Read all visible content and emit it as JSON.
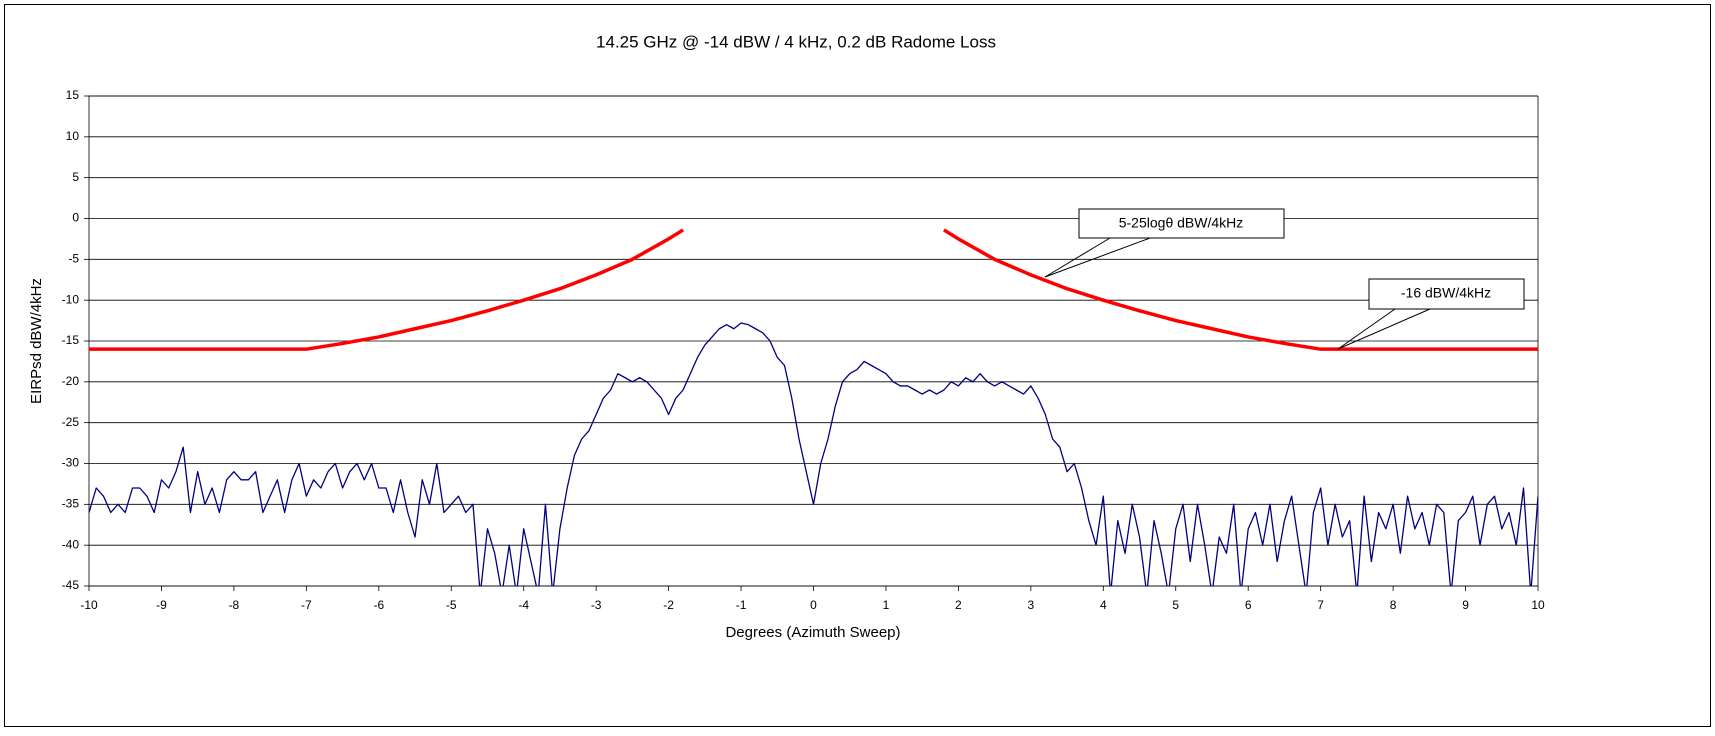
{
  "chart_data": {
    "type": "line",
    "title": "14.25 GHz @ -14 dBW / 4 kHz, 0.2 dB Radome Loss",
    "x_label": "Degrees (Azimuth Sweep)",
    "y_label": "EIRPsd dBW/4kHz",
    "xlim": [
      -10,
      10
    ],
    "xticks": [
      -10,
      -9,
      -8,
      -7,
      -6,
      -5,
      -4,
      -3,
      -2,
      -1,
      0,
      1,
      2,
      3,
      4,
      5,
      6,
      7,
      8,
      9,
      10
    ],
    "ylim": [
      -45,
      15
    ],
    "yticks": [
      -45,
      -40,
      -35,
      -30,
      -25,
      -20,
      -15,
      -10,
      -5,
      0,
      5,
      10,
      15
    ],
    "grid": true,
    "annotations": [
      {
        "text": "5-25logθ dBW/4kHz"
      },
      {
        "text": "-16 dBW/4kHz"
      }
    ],
    "series": [
      {
        "color": "#000080",
        "width": 1.3,
        "x": [
          -10,
          -9.9,
          -9.8,
          -9.7,
          -9.6,
          -9.5,
          -9.4,
          -9.3,
          -9.2,
          -9.1,
          -9,
          -8.9,
          -8.8,
          -8.7,
          -8.6,
          -8.5,
          -8.4,
          -8.3,
          -8.2,
          -8.1,
          -8,
          -7.9,
          -7.8,
          -7.7,
          -7.6,
          -7.5,
          -7.4,
          -7.3,
          -7.2,
          -7.1,
          -7,
          -6.9,
          -6.8,
          -6.7,
          -6.6,
          -6.5,
          -6.4,
          -6.3,
          -6.2,
          -6.1,
          -6,
          -5.9,
          -5.8,
          -5.7,
          -5.6,
          -5.5,
          -5.4,
          -5.3,
          -5.2,
          -5.1,
          -5,
          -4.9,
          -4.8,
          -4.7,
          -4.6,
          -4.5,
          -4.4,
          -4.3,
          -4.2,
          -4.1,
          -4,
          -3.9,
          -3.8,
          -3.7,
          -3.6,
          -3.5,
          -3.4,
          -3.3,
          -3.2,
          -3.1,
          -3,
          -2.9,
          -2.8,
          -2.7,
          -2.6,
          -2.5,
          -2.4,
          -2.3,
          -2.2,
          -2.1,
          -2,
          -1.9,
          -1.8,
          -1.7,
          -1.6,
          -1.5,
          -1.4,
          -1.3,
          -1.2,
          -1.1,
          -1,
          -0.9,
          -0.8,
          -0.7,
          -0.6,
          -0.5,
          -0.4,
          -0.3,
          -0.2,
          -0.1,
          0,
          0.1,
          0.2,
          0.3,
          0.4,
          0.5,
          0.6,
          0.7,
          0.8,
          0.9,
          1,
          1.1,
          1.2,
          1.3,
          1.4,
          1.5,
          1.6,
          1.7,
          1.8,
          1.9,
          2,
          2.1,
          2.2,
          2.3,
          2.4,
          2.5,
          2.6,
          2.7,
          2.8,
          2.9,
          3,
          3.1,
          3.2,
          3.3,
          3.4,
          3.5,
          3.6,
          3.7,
          3.8,
          3.9,
          4,
          4.1,
          4.2,
          4.3,
          4.4,
          4.5,
          4.6,
          4.7,
          4.8,
          4.9,
          5,
          5.1,
          5.2,
          5.3,
          5.4,
          5.5,
          5.6,
          5.7,
          5.8,
          5.9,
          6,
          6.1,
          6.2,
          6.3,
          6.4,
          6.5,
          6.6,
          6.7,
          6.8,
          6.9,
          7,
          7.1,
          7.2,
          7.3,
          7.4,
          7.5,
          7.6,
          7.7,
          7.8,
          7.9,
          8,
          8.1,
          8.2,
          8.3,
          8.4,
          8.5,
          8.6,
          8.7,
          8.8,
          8.9,
          9,
          9.1,
          9.2,
          9.3,
          9.4,
          9.5,
          9.6,
          9.7,
          9.8,
          9.9,
          10
        ],
        "values": [
          -36,
          -33,
          -34,
          -36,
          -35,
          -36,
          -33,
          -33,
          -34,
          -36,
          -32,
          -33,
          -31,
          -28,
          -36,
          -31,
          -35,
          -33,
          -36,
          -32,
          -31,
          -32,
          -32,
          -31,
          -36,
          -34,
          -32,
          -36,
          -32,
          -30,
          -34,
          -32,
          -33,
          -31,
          -30,
          -33,
          -31,
          -30,
          -32,
          -30,
          -33,
          -33,
          -36,
          -32,
          -36,
          -39,
          -32,
          -35,
          -30,
          -36,
          -35,
          -34,
          -36,
          -35,
          -46,
          -38,
          -41,
          -46,
          -40,
          -46,
          -38,
          -42,
          -46,
          -35,
          -46,
          -38,
          -33,
          -29,
          -27,
          -26,
          -24,
          -22,
          -21,
          -19,
          -19.5,
          -20,
          -19.5,
          -20,
          -21,
          -22,
          -24,
          -22,
          -21,
          -19,
          -17,
          -15.5,
          -14.5,
          -13.5,
          -13,
          -13.5,
          -12.8,
          -13,
          -13.5,
          -14,
          -15,
          -17,
          -18,
          -22,
          -27,
          -31,
          -35,
          -30,
          -27,
          -23,
          -20,
          -19,
          -18.5,
          -17.5,
          -18,
          -18.5,
          -19,
          -20,
          -20.5,
          -20.5,
          -21,
          -21.5,
          -21,
          -21.5,
          -21,
          -20,
          -20.5,
          -19.5,
          -20,
          -19,
          -20,
          -20.5,
          -20,
          -20.5,
          -21,
          -21.5,
          -20.5,
          -22,
          -24,
          -27,
          -28,
          -31,
          -30,
          -33,
          -37,
          -40,
          -34,
          -46,
          -37,
          -41,
          -35,
          -39,
          -46,
          -37,
          -41,
          -46,
          -38,
          -35,
          -42,
          -35,
          -40,
          -46,
          -39,
          -41,
          -35,
          -46,
          -38,
          -36,
          -40,
          -35,
          -42,
          -37,
          -34,
          -40,
          -46,
          -36,
          -33,
          -40,
          -35,
          -39,
          -37,
          -46,
          -34,
          -42,
          -36,
          -38,
          -35,
          -41,
          -34,
          -38,
          -36,
          -40,
          -35,
          -36,
          -46,
          -37,
          -36,
          -34,
          -40,
          -35,
          -34,
          -38,
          -36,
          -40,
          -33,
          -46,
          -34
        ]
      },
      {
        "color": "#ff0000",
        "width": 3.5,
        "x": [
          -10,
          -7,
          -6.5,
          -6,
          -5.5,
          -5,
          -4.5,
          -4,
          -3.5,
          -3,
          -2.5,
          -2,
          -1.8,
          0,
          1.8,
          2,
          2.5,
          3,
          3.5,
          4,
          4.5,
          5,
          5.5,
          6,
          6.5,
          7,
          10
        ],
        "values": [
          -16,
          -16,
          -15.3,
          -14.5,
          -13.5,
          -12.5,
          -11.3,
          -10,
          -8.6,
          -6.9,
          -5,
          -2.5,
          -1.4,
          null,
          -1.4,
          -2.5,
          -5,
          -6.9,
          -8.6,
          -10,
          -11.3,
          -12.5,
          -13.5,
          -14.5,
          -15.3,
          -16,
          -16
        ]
      }
    ]
  }
}
